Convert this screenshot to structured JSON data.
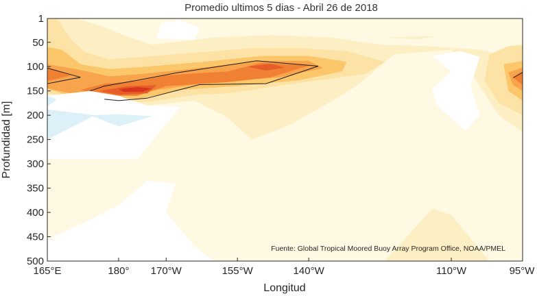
{
  "chart_data": {
    "type": "heatmap",
    "title": "Promedio ultimos 5 dias - Abril 26 de 2018",
    "xlabel": "Longitud",
    "ylabel": "Profundidad [m]",
    "x_ticks": [
      {
        "label": "165°E",
        "lon": 165
      },
      {
        "label": "180°",
        "lon": 180
      },
      {
        "label": "170°W",
        "lon": 190
      },
      {
        "label": "155°W",
        "lon": 205
      },
      {
        "label": "140°W",
        "lon": 220
      },
      {
        "label": "110°W",
        "lon": 250
      },
      {
        "label": "95°W",
        "lon": 265
      }
    ],
    "y_ticks": [
      {
        "label": "1",
        "depth": 1
      },
      {
        "label": "50",
        "depth": 50
      },
      {
        "label": "100",
        "depth": 100
      },
      {
        "label": "150",
        "depth": 150
      },
      {
        "label": "200",
        "depth": 200
      },
      {
        "label": "250",
        "depth": 250
      },
      {
        "label": "300",
        "depth": 300
      },
      {
        "label": "350",
        "depth": 350
      },
      {
        "label": "400",
        "depth": 400
      },
      {
        "label": "450",
        "depth": 450
      },
      {
        "label": "500",
        "depth": 500
      }
    ],
    "xlim": [
      165,
      265
    ],
    "ylim": [
      1,
      500
    ],
    "y_reversed": true,
    "grid": false,
    "colors": {
      "background": "#fff9e3",
      "negative_1": "#dcf0f8",
      "negative_0": "#ffffff",
      "level_1": "#fdefc4",
      "level_2": "#fde2a6",
      "level_3": "#fcc66b",
      "level_4": "#f8a44c",
      "level_5": "#f08132",
      "level_6": "#e65d28",
      "level_7": "#d8351e"
    },
    "annotation": "Fuente: Global Tropical Moored Buoy Array Program Office, NOAA/PMEL",
    "regions": [
      {
        "level": "level_1",
        "points": [
          [
            165,
            1
          ],
          [
            171,
            1
          ],
          [
            176,
            15
          ],
          [
            181,
            35
          ],
          [
            187,
            55
          ],
          [
            200,
            40
          ],
          [
            212,
            35
          ],
          [
            225,
            40
          ],
          [
            235,
            55
          ],
          [
            245,
            58
          ],
          [
            256,
            65
          ],
          [
            262,
            80
          ],
          [
            265,
            75
          ],
          [
            265,
            235
          ],
          [
            260,
            200
          ],
          [
            255,
            125
          ],
          [
            250,
            65
          ],
          [
            238,
            75
          ],
          [
            230,
            140
          ],
          [
            225,
            170
          ],
          [
            216,
            220
          ],
          [
            208,
            250
          ],
          [
            203,
            205
          ],
          [
            196,
            170
          ],
          [
            186,
            180
          ],
          [
            180,
            160
          ],
          [
            174,
            150
          ],
          [
            165,
            160
          ]
        ]
      },
      {
        "level": "level_1",
        "points": [
          [
            246,
            392
          ],
          [
            250,
            405
          ],
          [
            258,
            500
          ],
          [
            236,
            500
          ]
        ]
      },
      {
        "level": "level_1",
        "points": [
          [
            236,
            40
          ],
          [
            247,
            37
          ],
          [
            243,
            44
          ]
        ]
      },
      {
        "level": "level_2",
        "points": [
          [
            165,
            1
          ],
          [
            167,
            1
          ],
          [
            170,
            45
          ],
          [
            173,
            70
          ],
          [
            178,
            85
          ],
          [
            185,
            80
          ],
          [
            195,
            72
          ],
          [
            208,
            62
          ],
          [
            218,
            62
          ],
          [
            228,
            68
          ],
          [
            236,
            90
          ],
          [
            232,
            115
          ],
          [
            222,
            128
          ],
          [
            212,
            142
          ],
          [
            203,
            155
          ],
          [
            196,
            158
          ],
          [
            188,
            170
          ],
          [
            180,
            178
          ],
          [
            172,
            165
          ],
          [
            165,
            155
          ]
        ]
      },
      {
        "level": "level_2",
        "points": [
          [
            258,
            75
          ],
          [
            262,
            58
          ],
          [
            265,
            55
          ],
          [
            265,
            200
          ],
          [
            260,
            175
          ],
          [
            257,
            130
          ]
        ]
      },
      {
        "level": "level_3",
        "points": [
          [
            165,
            60
          ],
          [
            168,
            65
          ],
          [
            172,
            95
          ],
          [
            178,
            105
          ],
          [
            186,
            100
          ],
          [
            200,
            88
          ],
          [
            210,
            78
          ],
          [
            220,
            78
          ],
          [
            228,
            90
          ],
          [
            227,
            110
          ],
          [
            218,
            128
          ],
          [
            205,
            140
          ],
          [
            193,
            148
          ],
          [
            185,
            165
          ],
          [
            176,
            170
          ],
          [
            168,
            155
          ],
          [
            165,
            145
          ]
        ]
      },
      {
        "level": "level_3",
        "points": [
          [
            261,
            95
          ],
          [
            265,
            88
          ],
          [
            265,
            170
          ],
          [
            262,
            150
          ]
        ]
      },
      {
        "level": "level_4",
        "points": [
          [
            165,
            95
          ],
          [
            171,
            105
          ],
          [
            178,
            120
          ],
          [
            185,
            115
          ],
          [
            195,
            105
          ],
          [
            210,
            88
          ],
          [
            220,
            88
          ],
          [
            223,
            103
          ],
          [
            214,
            122
          ],
          [
            200,
            132
          ],
          [
            188,
            148
          ],
          [
            180,
            157
          ],
          [
            170,
            155
          ],
          [
            165,
            145
          ]
        ]
      },
      {
        "level": "level_4",
        "points": [
          [
            262,
            112
          ],
          [
            265,
            102
          ],
          [
            265,
            150
          ],
          [
            263,
            138
          ]
        ]
      },
      {
        "level": "level_5",
        "points": [
          [
            165,
            102
          ],
          [
            170,
            118
          ],
          [
            165,
            130
          ]
        ]
      },
      {
        "level": "level_5",
        "points": [
          [
            263,
            122
          ],
          [
            265,
            110
          ],
          [
            265,
            138
          ]
        ]
      },
      {
        "level": "level_5",
        "points": [
          [
            172,
            148
          ],
          [
            177,
            135
          ],
          [
            184,
            130
          ],
          [
            190,
            118
          ],
          [
            203,
            110
          ],
          [
            210,
            92
          ],
          [
            220,
            98
          ],
          [
            212,
            122
          ],
          [
            203,
            132
          ],
          [
            190,
            140
          ],
          [
            184,
            160
          ],
          [
            177,
            160
          ]
        ]
      },
      {
        "level": "level_6",
        "points": [
          [
            176,
            150
          ],
          [
            182,
            140
          ],
          [
            188,
            138
          ],
          [
            186,
            155
          ],
          [
            180,
            158
          ]
        ]
      },
      {
        "level": "level_6",
        "points": [
          [
            207,
            100
          ],
          [
            212,
            94
          ],
          [
            215,
            102
          ],
          [
            211,
            108
          ]
        ]
      },
      {
        "level": "level_7",
        "points": [
          [
            180,
            146
          ],
          [
            184,
            142
          ],
          [
            187,
            145
          ],
          [
            185,
            152
          ],
          [
            181,
            152
          ]
        ]
      },
      {
        "level": "negative_0",
        "points": [
          [
            165,
            160
          ],
          [
            174,
            150
          ],
          [
            180,
            160
          ],
          [
            186,
            180
          ],
          [
            193,
            183
          ],
          [
            189,
            230
          ],
          [
            184,
            290
          ],
          [
            165,
            290
          ]
        ]
      },
      {
        "level": "negative_0",
        "points": [
          [
            165,
            500
          ],
          [
            165,
            455
          ],
          [
            173,
            420
          ],
          [
            180,
            385
          ],
          [
            186,
            335
          ],
          [
            192,
            340
          ],
          [
            190,
            400
          ],
          [
            196,
            470
          ],
          [
            200,
            500
          ]
        ]
      },
      {
        "level": "negative_0",
        "points": [
          [
            246,
            78
          ],
          [
            252,
            68
          ],
          [
            256,
            80
          ],
          [
            254,
            140
          ],
          [
            256,
            200
          ],
          [
            253,
            232
          ],
          [
            247,
            180
          ],
          [
            246,
            145
          ],
          [
            250,
            110
          ]
        ]
      },
      {
        "level": "negative_0",
        "points": [
          [
            189,
            10
          ],
          [
            193,
            5
          ],
          [
            197,
            20
          ],
          [
            196,
            45
          ],
          [
            188,
            42
          ]
        ]
      },
      {
        "level": "negative_1",
        "points": [
          [
            165,
            188
          ],
          [
            175,
            200
          ],
          [
            165,
            250
          ]
        ]
      },
      {
        "level": "negative_1",
        "points": [
          [
            174,
            200
          ],
          [
            180,
            198
          ],
          [
            187,
            202
          ],
          [
            180,
            223
          ]
        ]
      },
      {
        "level": "negative_1",
        "points": [
          [
            165,
            160
          ],
          [
            167,
            168
          ],
          [
            165,
            182
          ]
        ]
      }
    ],
    "contour_lines": [
      {
        "points": [
          [
            165,
            103
          ],
          [
            172,
            122
          ],
          [
            165,
            135
          ]
        ]
      },
      {
        "points": [
          [
            263,
            123
          ],
          [
            265,
            112
          ],
          [
            265,
            135
          ]
        ]
      },
      {
        "points": [
          [
            174,
            150
          ],
          [
            177,
            140
          ],
          [
            184,
            128
          ],
          [
            192,
            113
          ],
          [
            209,
            88
          ],
          [
            222,
            99
          ],
          [
            211,
            135
          ],
          [
            197,
            137
          ],
          [
            186,
            165
          ],
          [
            180,
            170
          ],
          [
            177,
            167
          ]
        ]
      }
    ]
  }
}
